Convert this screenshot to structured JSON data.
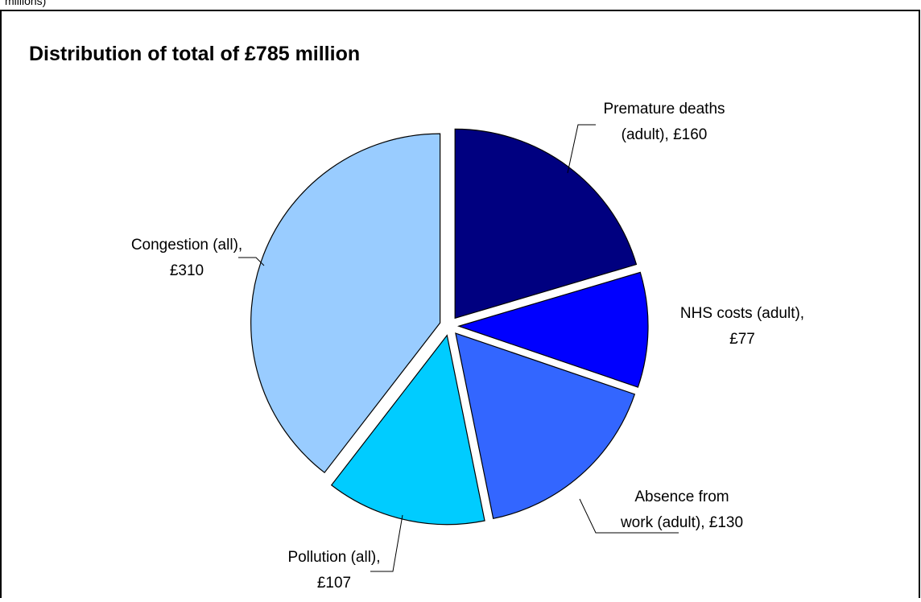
{
  "caption_fragment": "millions)",
  "chart_data": {
    "type": "pie",
    "title": "Distribution of total of £785 million",
    "categories": [
      "Premature deaths (adult)",
      "NHS costs (adult)",
      "Absence from work (adult)",
      "Pollution (all)",
      "Congestion (all)"
    ],
    "values": [
      160,
      77,
      130,
      107,
      310
    ],
    "labels": [
      [
        "Premature deaths",
        "(adult), £160"
      ],
      [
        "NHS costs (adult),",
        "£77"
      ],
      [
        "Absence from",
        "work (adult), £130"
      ],
      [
        "Pollution (all),",
        "£107"
      ],
      [
        "Congestion (all),",
        "£310"
      ]
    ],
    "colors": [
      "#000080",
      "#0000ff",
      "#3366ff",
      "#00ccff",
      "#99ccff"
    ]
  }
}
